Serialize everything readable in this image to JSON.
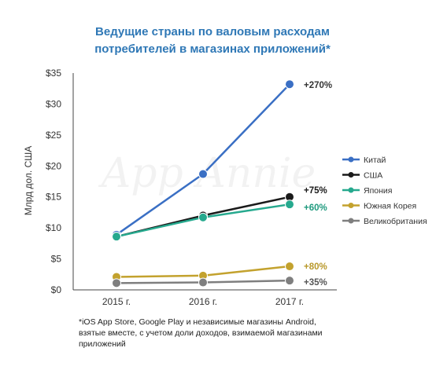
{
  "chart_data": {
    "type": "line",
    "title_line1": "Ведущие страны по валовым расходам",
    "title_line2": "потребителей в магазинах приложений*",
    "xlabel": "",
    "ylabel": "Млрд дол. США",
    "categories": [
      "2015 г.",
      "2016 г.",
      "2017 г."
    ],
    "ylim": [
      0,
      35
    ],
    "yticks": [
      "$0",
      "$5",
      "$10",
      "$15",
      "$20",
      "$25",
      "$30",
      "$35"
    ],
    "grid": false,
    "legend_position": "right",
    "series": [
      {
        "name": "Китай",
        "values": [
          8.9,
          18.7,
          33.2
        ],
        "color": "#3a6fc4",
        "label": "+270%",
        "label_color": "#333333"
      },
      {
        "name": "США",
        "values": [
          8.6,
          12.0,
          15.0
        ],
        "color": "#1a1a1a",
        "label": "+75%",
        "label_color": "#1a1a1a"
      },
      {
        "name": "Япония",
        "values": [
          8.6,
          11.7,
          13.8
        ],
        "color": "#26a98e",
        "label": "+60%",
        "label_color": "#1f9a7e"
      },
      {
        "name": "Южная Корея",
        "values": [
          2.1,
          2.3,
          3.8
        ],
        "color": "#c3a22e",
        "label": "+80%",
        "label_color": "#b8982a"
      },
      {
        "name": "Великобритания",
        "values": [
          1.1,
          1.2,
          1.5
        ],
        "color": "#7f7f7f",
        "label": "+35%",
        "label_color": "#555555"
      }
    ],
    "watermark": "App Annie"
  },
  "footnote": {
    "line1": "*iOS App Store, Google Play и независимые магазины Android,",
    "line2": "взятые вместе, с учетом доли доходов, взимаемой магазинами",
    "line3": "приложений"
  }
}
